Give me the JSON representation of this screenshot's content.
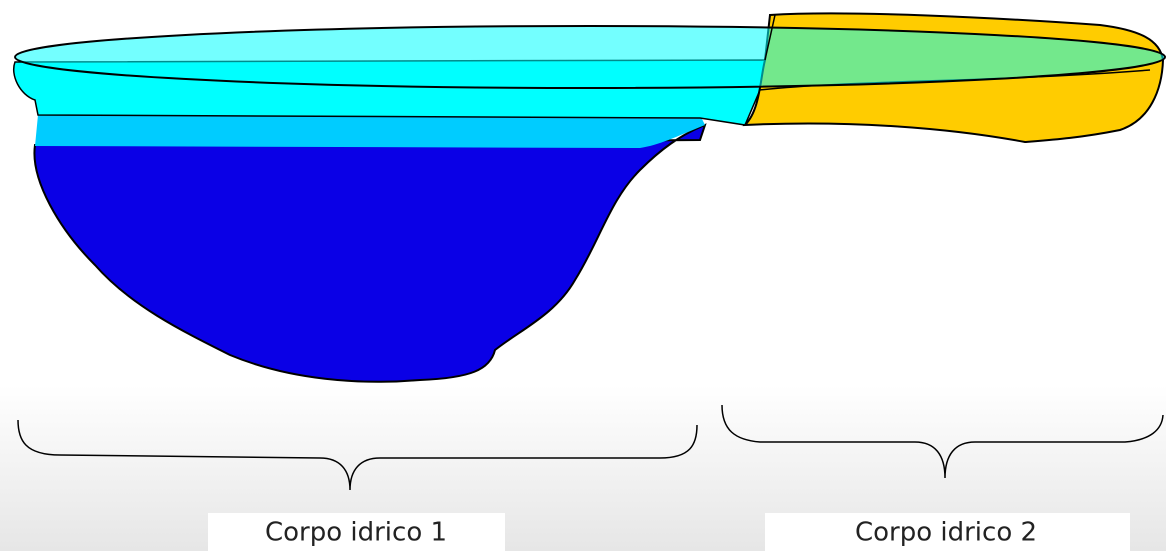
{
  "bodies": [
    "Corpo idrico 1",
    "Corpo idrico 2"
  ]
}
